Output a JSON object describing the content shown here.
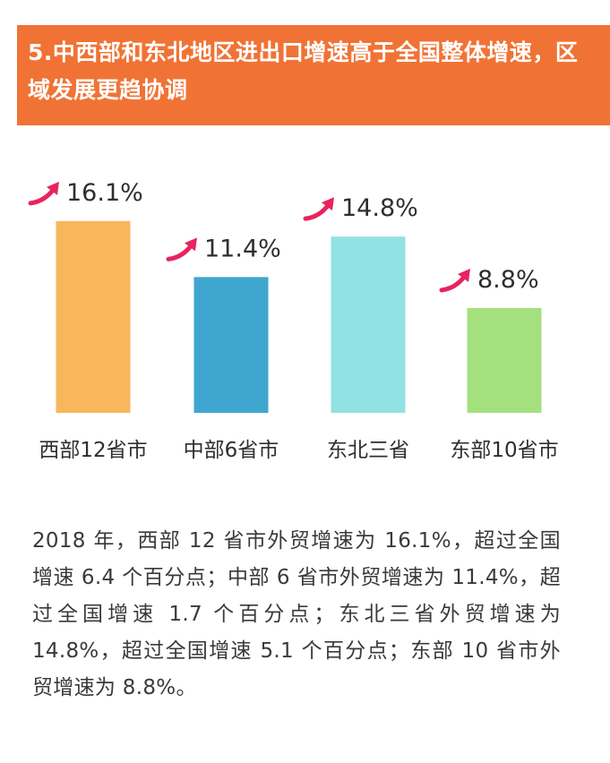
{
  "header": {
    "title": "5.中西部和东北地区进出口增速高于全国整体增速，区域发展更趋协调"
  },
  "colors": {
    "header_bg": "#f07335",
    "arrow": "#e8245e",
    "bars": [
      "#f9b75c",
      "#3fa7cf",
      "#92e1e3",
      "#a5e07e"
    ]
  },
  "chart_data": {
    "type": "bar",
    "title": "",
    "xlabel": "",
    "ylabel": "",
    "ylim": [
      0,
      17
    ],
    "unit": "%",
    "categories": [
      "西部12省市",
      "中部6省市",
      "东北三省",
      "东部10省市"
    ],
    "values": [
      16.1,
      11.4,
      14.8,
      8.8
    ],
    "value_labels": [
      "16.1%",
      "11.4%",
      "14.8%",
      "8.8%"
    ],
    "arrow_icon": "up-trend-arrow-icon"
  },
  "description": {
    "text": "2018 年，西部 12 省市外贸增速为 16.1%，超过全国增速 6.4 个百分点；中部 6 省市外贸增速为 11.4%，超过全国增速 1.7 个百分点；东北三省外贸增速为 14.8%，超过全国增速 5.1 个百分点；东部 10 省市外贸增速为 8.8%。"
  }
}
